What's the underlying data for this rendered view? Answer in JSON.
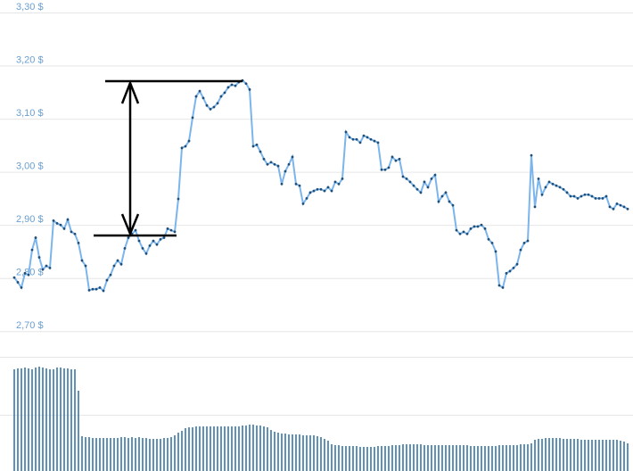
{
  "chart_data": [
    {
      "type": "line",
      "color": "#7cb5ec",
      "marker_color": "#1f4e79",
      "grid": true,
      "ylim": [
        2.65,
        3.3
      ],
      "yticks": [
        {
          "value": 3.3,
          "label": "3,30 $"
        },
        {
          "value": 3.2,
          "label": "3,20 $"
        },
        {
          "value": 3.1,
          "label": "3,10 $"
        },
        {
          "value": 3.0,
          "label": "3,00 $"
        },
        {
          "value": 2.9,
          "label": "2,90 $"
        },
        {
          "value": 2.8,
          "label": "2,80 $"
        },
        {
          "value": 2.7,
          "label": "2,70 $"
        }
      ],
      "values": [
        2.801,
        2.792,
        2.782,
        2.809,
        2.806,
        2.853,
        2.876,
        2.839,
        2.816,
        2.823,
        2.819,
        2.908,
        2.903,
        2.9,
        2.893,
        2.91,
        2.887,
        2.883,
        2.866,
        2.833,
        2.823,
        2.777,
        2.779,
        2.779,
        2.782,
        2.776,
        2.796,
        2.806,
        2.823,
        2.833,
        2.826,
        2.856,
        2.876,
        2.883,
        2.89,
        2.87,
        2.856,
        2.846,
        2.861,
        2.87,
        2.863,
        2.873,
        2.876,
        2.893,
        2.89,
        2.887,
        2.949,
        3.045,
        3.048,
        3.058,
        3.102,
        3.142,
        3.152,
        3.139,
        3.125,
        3.118,
        3.122,
        3.129,
        3.142,
        3.149,
        3.159,
        3.164,
        3.162,
        3.169,
        3.172,
        3.166,
        3.155,
        3.048,
        3.051,
        3.038,
        3.024,
        3.014,
        3.018,
        3.014,
        3.011,
        2.977,
        3.001,
        3.014,
        3.028,
        2.977,
        2.974,
        2.94,
        2.95,
        2.961,
        2.964,
        2.967,
        2.967,
        2.964,
        2.971,
        2.964,
        2.981,
        2.977,
        2.987,
        3.075,
        3.065,
        3.061,
        3.061,
        3.055,
        3.068,
        3.065,
        3.061,
        3.058,
        3.055,
        3.004,
        3.004,
        3.008,
        3.028,
        3.021,
        3.024,
        2.991,
        2.987,
        2.981,
        2.974,
        2.967,
        2.961,
        2.981,
        2.971,
        2.987,
        2.994,
        2.944,
        2.954,
        2.961,
        2.944,
        2.937,
        2.89,
        2.883,
        2.887,
        2.883,
        2.893,
        2.897,
        2.897,
        2.9,
        2.893,
        2.873,
        2.866,
        2.85,
        2.786,
        2.782,
        2.809,
        2.813,
        2.819,
        2.826,
        2.853,
        2.866,
        2.87,
        3.031,
        2.934,
        2.987,
        2.957,
        2.971,
        2.981,
        2.977,
        2.974,
        2.971,
        2.967,
        2.961,
        2.954,
        2.954,
        2.95,
        2.954,
        2.957,
        2.957,
        2.954,
        2.95,
        2.95,
        2.95,
        2.954,
        2.934,
        2.93,
        2.94,
        2.937,
        2.934,
        2.93
      ]
    },
    {
      "type": "bar",
      "color": "#2a6f9e",
      "ylim": [
        0,
        128
      ],
      "values": [
        114,
        115,
        115,
        116,
        115,
        114,
        116,
        117,
        116,
        115,
        114,
        114,
        116,
        116,
        115,
        115,
        114,
        114,
        90,
        39,
        38,
        38,
        37,
        37,
        37,
        37,
        37,
        37,
        37,
        37,
        38,
        38,
        37,
        38,
        37,
        38,
        37,
        37,
        36,
        36,
        36,
        36,
        37,
        37,
        38,
        40,
        43,
        45,
        48,
        49,
        49,
        50,
        50,
        50,
        50,
        50,
        50,
        50,
        50,
        50,
        50,
        50,
        50,
        50,
        51,
        51,
        52,
        52,
        51,
        51,
        50,
        49,
        46,
        44,
        43,
        42,
        42,
        41,
        41,
        41,
        41,
        40,
        40,
        40,
        40,
        39,
        38,
        36,
        34,
        30,
        29,
        29,
        28,
        28,
        28,
        28,
        28,
        27,
        27,
        27,
        27,
        27,
        28,
        28,
        28,
        28,
        29,
        29,
        29,
        30,
        30,
        30,
        30,
        30,
        30,
        29,
        29,
        29,
        29,
        29,
        29,
        29,
        29,
        29,
        29,
        29,
        29,
        29,
        28,
        28,
        28,
        28,
        28,
        28,
        28,
        28,
        29,
        29,
        29,
        29,
        29,
        29,
        30,
        30,
        30,
        31,
        35,
        36,
        36,
        37,
        37,
        37,
        37,
        37,
        36,
        36,
        36,
        36,
        36,
        35,
        35,
        35,
        35,
        35,
        35,
        35,
        35,
        35,
        35,
        35,
        34,
        33,
        31
      ]
    }
  ]
}
